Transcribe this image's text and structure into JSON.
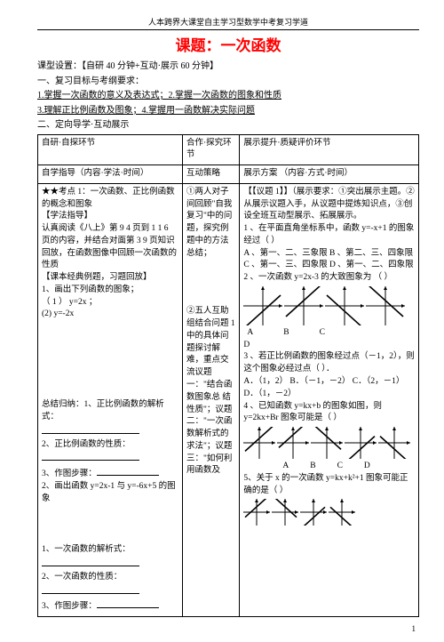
{
  "header": "人本跨界大课堂自主学习型数学中考复习学道",
  "title_prefix": "课题：",
  "title_main": "一次函数",
  "setup": "课型设置：【自研 40 分钟+互动·展示 60 分钟】",
  "goals_header": "一、复习目标与考纲要求：",
  "goal1": "1.掌握一次函数的意义及表达式；2.掌握一次函数的图象和性质",
  "goal2": "3.理解正比例函数及图象；4.掌握用一函数解决实际问题",
  "section2": "二、定向导学·互动展示",
  "tbl": {
    "r1c1": "自研·自探环节",
    "r1c2": "合作·探究环节",
    "r1c3": "展示提升·质疑评价环节",
    "r2c1": "自学指导（内容·学法·时间）",
    "r2c2": "互动策略",
    "r2c3": "展示方案 （内容·方式·时间）"
  },
  "leftCol": {
    "p1": "★★考点 1：一次函数、正比例函数的概念和图象",
    "p2": "【学法指导】",
    "p3": "认真阅读《八上》第 9 4 页到 1 1 6 页的内容，并结合对面第 3 9 页知识回放，在函数图像中回顾一次函数的性质",
    "p4": "【课本经典例题，习题回放】",
    "p5": "1、画出下列函数的图象；",
    "p6": "（   1   ）    y=2x    ；",
    "p7": "(2) y=-2x",
    "sum_hdr": "总结归纳：1、正比例函数的解析式：",
    "s2": "2、正比例函数的性质：",
    "s3": "3、作图步骤：",
    "s4": "2、画出函数 y=2x-1 与 y=-6x+5 的图象",
    "t1": "1、一次函数的解析式：",
    "t2": "2、一次函数的性质：",
    "t3": "3、作图步骤："
  },
  "midCol": {
    "m1": "①两人对子间回顾\"自我复习\"中的问题，探究例题中的方法总结；",
    "m2": "②五人互助组结合问题 1 中的具体问题探讨解难，重点交流议题一：\"结合函数图象总 结 性质\"；议题二：\"一次函数解析式的求法\"；议题三：\"如何利用函数及"
  },
  "rightCol": {
    "r1": "【【议题 1】】（展示要求：①突出展示主题。②从展示议题入手，从议题中提炼知识点，③创设全班互动型展示、拓展展示。",
    "q1_intro": "1 、在平面直角坐标系中，函数 y=-x+1 的图象经过（  ）",
    "q1a": "A 、第一、二、三象限          B 、第二、三、四象限",
    "q1c": "C 、第一、三、四象限          D 、第一、二、四象限",
    "q2_intro": "2 、一次函数 y=2x-3 的大致图象为 （    ）",
    "q3": "3 、若正比例函数的图象经过点（－1，2），则这个图象必经过点（ ）．",
    "q3opts": "A．（1，2）   B．（－1，－2）   C．（2，－1）   D．（1，－2）",
    "q4": "4 、已知函数 y=kx+b 的图象如图，则 y=2kx+Br 图象可能是（   ）",
    "q5": "5、关于 x 的一次函数 y=kx+k²+1 图象可能正确的是（   ）"
  },
  "chart": {
    "axis_color": "#000000",
    "line_color": "#000000",
    "arrow_color": "#000000",
    "label_color": "#000000",
    "size": 44,
    "labelsABCD": [
      "A",
      "B",
      "C",
      "D"
    ]
  },
  "pagenum": "1"
}
